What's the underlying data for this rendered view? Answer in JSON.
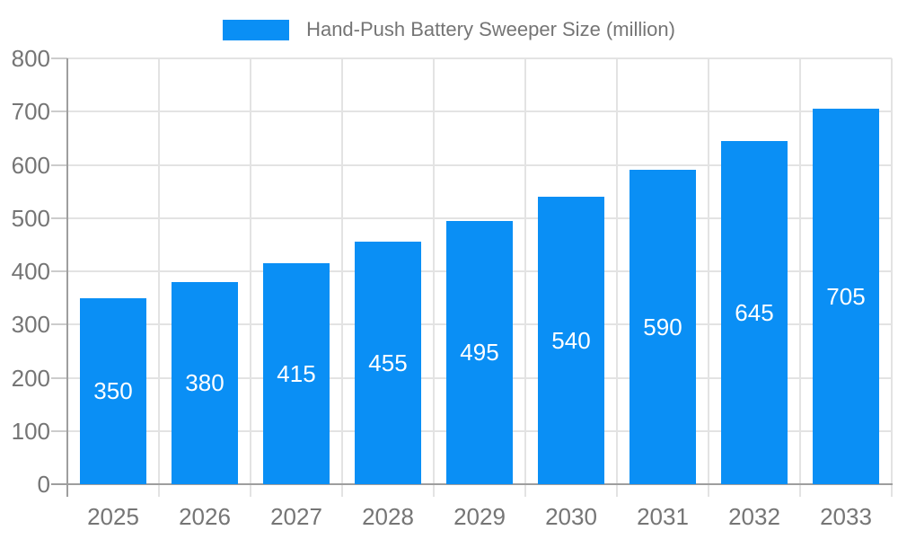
{
  "chart_data": {
    "type": "bar",
    "title": "Hand-Push Battery Sweeper Size (million)",
    "categories": [
      "2025",
      "2026",
      "2027",
      "2028",
      "2029",
      "2030",
      "2031",
      "2032",
      "2033"
    ],
    "values": [
      350,
      380,
      415,
      455,
      495,
      540,
      590,
      645,
      705
    ],
    "xlabel": "",
    "ylabel": "",
    "ylim": [
      0,
      800
    ],
    "yticks": [
      0,
      100,
      200,
      300,
      400,
      500,
      600,
      700,
      800
    ],
    "grid": true,
    "legend_position": "top",
    "bar_color": "#0a8ff5",
    "value_label_color": "#ffffff",
    "axis_text_color": "#757575",
    "gridline_color": "#e3e3e3",
    "tick_color": "#cccccc",
    "axis_line_color": "#9e9e9e"
  }
}
